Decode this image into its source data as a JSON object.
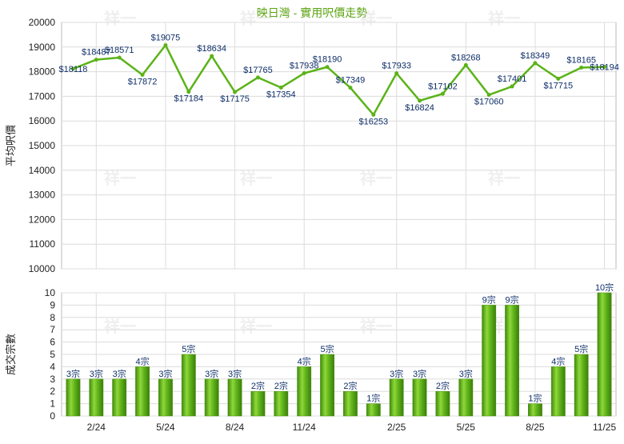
{
  "chart_data": [
    {
      "type": "line",
      "title": "映日灣 - 實用呎價走勢",
      "ylabel": "平均呎價",
      "ylim": [
        10000,
        20000
      ],
      "yticks": [
        10000,
        11000,
        12000,
        13000,
        14000,
        15000,
        16000,
        17000,
        18000,
        19000,
        20000
      ],
      "grid": true,
      "color": "#5bb318",
      "series": [
        {
          "values": [
            18118,
            18487,
            18571,
            17872,
            19075,
            17184,
            18634,
            17175,
            17765,
            17354,
            17938,
            18190,
            17349,
            16253,
            17933,
            16824,
            17102,
            18268,
            17060,
            17401,
            18349,
            17715,
            18165,
            18194
          ],
          "labels": [
            "$18118",
            "$18487",
            "$18571",
            "$17872",
            "$19075",
            "$17184",
            "$18634",
            "$17175",
            "$17765",
            "$17354",
            "$17938",
            "$18190",
            "$17349",
            "$16253",
            "$17933",
            "$16824",
            "$17102",
            "$18268",
            "$17060",
            "$17401",
            "$18349",
            "$17715",
            "$18165",
            "$18194"
          ]
        }
      ]
    },
    {
      "type": "bar",
      "ylabel": "成交宗數",
      "ylim": [
        0,
        10
      ],
      "yticks": [
        0,
        1,
        2,
        3,
        4,
        5,
        6,
        7,
        8,
        9,
        10
      ],
      "grid": true,
      "color": "#62b51c",
      "categories": [
        "",
        "2/24",
        "",
        "",
        "5/24",
        "",
        "",
        "8/24",
        "",
        "",
        "11/24",
        "",
        "",
        "",
        "2/25",
        "",
        "",
        "5/25",
        "",
        "",
        "8/25",
        "",
        "",
        "11/25"
      ],
      "values": [
        3,
        3,
        3,
        4,
        3,
        5,
        3,
        3,
        2,
        2,
        4,
        5,
        2,
        1,
        3,
        3,
        2,
        3,
        9,
        9,
        1,
        4,
        5,
        10
      ],
      "labels": [
        "3宗",
        "3宗",
        "3宗",
        "4宗",
        "3宗",
        "5宗",
        "3宗",
        "3宗",
        "2宗",
        "2宗",
        "4宗",
        "5宗",
        "2宗",
        "1宗",
        "3宗",
        "3宗",
        "2宗",
        "3宗",
        "9宗",
        "9宗",
        "1宗",
        "4宗",
        "5宗",
        "10宗"
      ]
    }
  ],
  "watermark": "祥一"
}
